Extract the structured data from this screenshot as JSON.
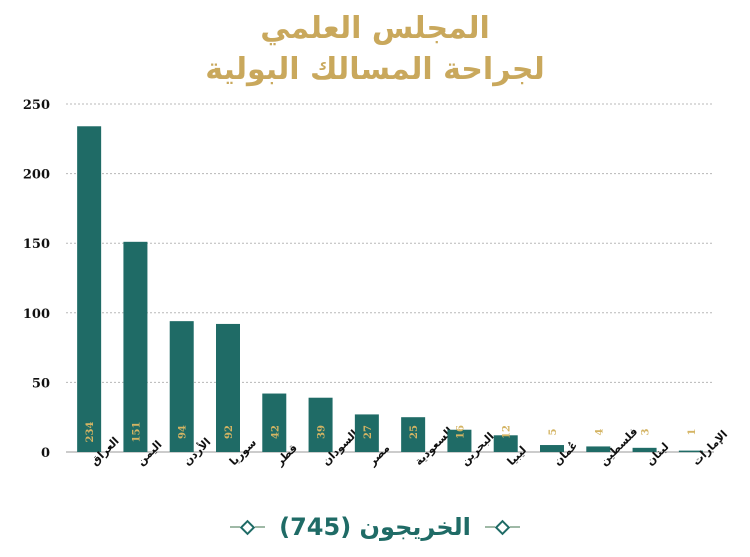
{
  "header": {
    "title_line1": "المجلس العلمي",
    "title_line2": "لجراحة المسالك البولية"
  },
  "footer": {
    "label": "الخريجون (745)"
  },
  "colors": {
    "bar": "#1f6b66",
    "title": "#c9a85c",
    "value_label": "#d4b463",
    "axis_text": "#111111",
    "grid": "#b8b8b8"
  },
  "chart_data": {
    "type": "bar",
    "categories": [
      "العراق",
      "اليمن",
      "الأردن",
      "سوريا",
      "قطر",
      "السودان",
      "مصر",
      "السعودية",
      "البحرين",
      "ليبيا",
      "عُمان",
      "فلسطين",
      "لبنان",
      "الإمارات"
    ],
    "values": [
      234,
      151,
      94,
      92,
      42,
      39,
      27,
      25,
      16,
      12,
      5,
      4,
      3,
      1
    ],
    "yticks": [
      0,
      50,
      100,
      150,
      200,
      250
    ],
    "ylim": [
      0,
      250
    ],
    "grid": true,
    "title": "",
    "xlabel": "",
    "ylabel": ""
  }
}
